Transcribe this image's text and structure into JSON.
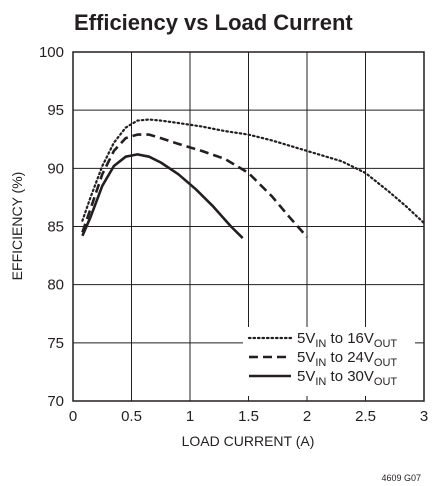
{
  "chart_data": {
    "type": "line",
    "title": "Efficiency vs Load Current",
    "xlabel": "LOAD CURRENT (A)",
    "ylabel": "EFFICIENCY (%)",
    "xlim": [
      0,
      3
    ],
    "ylim": [
      70,
      100
    ],
    "x_ticks": [
      "0",
      "0.5",
      "1",
      "1.5",
      "2",
      "2.5",
      "3"
    ],
    "y_ticks": [
      "70",
      "75",
      "80",
      "85",
      "90",
      "95",
      "100"
    ],
    "grid": true,
    "legend_position": "bottom-right",
    "series": [
      {
        "name_parts": [
          "5V",
          "IN",
          " to 16V",
          "OUT"
        ],
        "style": "dotted",
        "x": [
          0.08,
          0.15,
          0.25,
          0.35,
          0.45,
          0.55,
          0.65,
          0.75,
          0.9,
          1.1,
          1.3,
          1.5,
          1.7,
          1.9,
          2.1,
          2.3,
          2.5,
          2.7,
          2.85,
          3.0
        ],
        "y": [
          85.5,
          87.5,
          90.2,
          92.2,
          93.5,
          94.1,
          94.2,
          94.1,
          93.9,
          93.6,
          93.2,
          92.9,
          92.4,
          91.8,
          91.2,
          90.6,
          89.6,
          88.0,
          86.7,
          85.3
        ]
      },
      {
        "name_parts": [
          "5V",
          "IN",
          " to 24V",
          "OUT"
        ],
        "style": "dashed",
        "x": [
          0.08,
          0.15,
          0.25,
          0.35,
          0.45,
          0.55,
          0.65,
          0.75,
          0.9,
          1.1,
          1.3,
          1.5,
          1.7,
          1.85,
          2.0
        ],
        "y": [
          84.5,
          86.5,
          89.5,
          91.5,
          92.6,
          92.9,
          92.9,
          92.6,
          92.1,
          91.5,
          90.8,
          89.6,
          87.6,
          85.8,
          84.1
        ]
      },
      {
        "name_parts": [
          "5V",
          "IN",
          " to 30V",
          "OUT"
        ],
        "style": "solid",
        "x": [
          0.08,
          0.15,
          0.25,
          0.35,
          0.45,
          0.55,
          0.65,
          0.75,
          0.9,
          1.05,
          1.2,
          1.35,
          1.45
        ],
        "y": [
          84.2,
          85.8,
          88.5,
          90.2,
          91.0,
          91.2,
          91.0,
          90.5,
          89.5,
          88.2,
          86.7,
          85.0,
          84.0
        ]
      }
    ]
  },
  "figure_id": "4609 G07"
}
